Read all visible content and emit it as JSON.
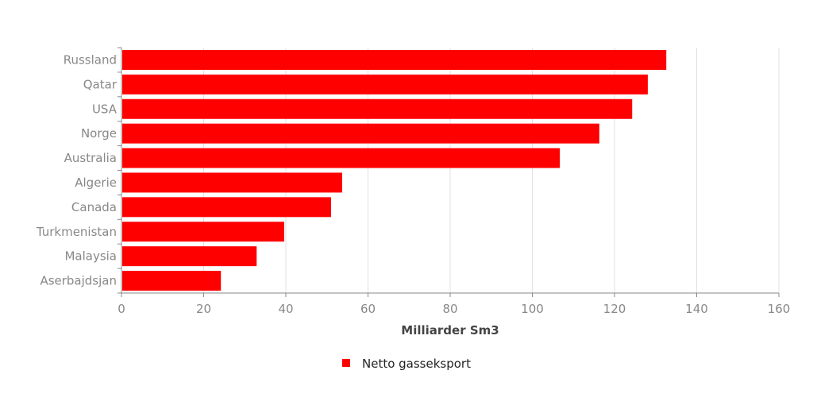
{
  "chart_data": {
    "type": "bar",
    "orientation": "horizontal",
    "categories": [
      "Russland",
      "Qatar",
      "USA",
      "Norge",
      "Australia",
      "Algerie",
      "Canada",
      "Turkmenistan",
      "Malaysia",
      "Aserbajdsjan"
    ],
    "series": [
      {
        "name": "Netto gasseksport",
        "color": "#ff0000",
        "values": [
          132.6,
          128.1,
          124.3,
          116.3,
          106.7,
          53.7,
          51.0,
          39.6,
          32.9,
          24.2
        ]
      }
    ],
    "xlabel": "Milliarder Sm3",
    "ylabel": "",
    "xlim": [
      0,
      160
    ],
    "xticks": [
      "0",
      "20",
      "40",
      "60",
      "80",
      "100",
      "120",
      "140",
      "160"
    ],
    "grid": true,
    "legend_position": "bottom-center"
  }
}
